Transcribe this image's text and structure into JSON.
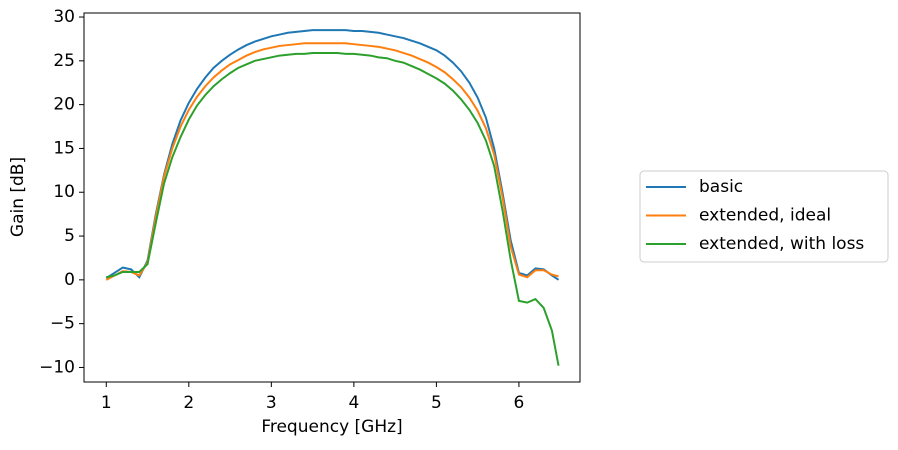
{
  "chart_data": {
    "type": "line",
    "xlabel": "Frequency [GHz]",
    "ylabel": "Gain [dB]",
    "x": [
      1.0,
      1.1,
      1.2,
      1.3,
      1.4,
      1.5,
      1.6,
      1.7,
      1.8,
      1.9,
      2.0,
      2.1,
      2.2,
      2.3,
      2.4,
      2.5,
      2.6,
      2.7,
      2.8,
      2.9,
      3.0,
      3.1,
      3.2,
      3.3,
      3.4,
      3.5,
      3.6,
      3.7,
      3.8,
      3.9,
      4.0,
      4.1,
      4.2,
      4.3,
      4.4,
      4.5,
      4.6,
      4.7,
      4.8,
      4.9,
      5.0,
      5.1,
      5.2,
      5.3,
      5.4,
      5.5,
      5.6,
      5.7,
      5.8,
      5.9,
      6.0,
      6.1,
      6.2,
      6.3,
      6.4,
      6.48
    ],
    "series": [
      {
        "name": "basic",
        "color": "#1f77b4",
        "values": [
          0.2,
          0.8,
          1.4,
          1.2,
          0.3,
          2.2,
          7.5,
          12.0,
          15.5,
          18.2,
          20.2,
          21.8,
          23.1,
          24.2,
          25.0,
          25.7,
          26.3,
          26.8,
          27.2,
          27.5,
          27.8,
          28.0,
          28.2,
          28.3,
          28.4,
          28.5,
          28.5,
          28.5,
          28.5,
          28.5,
          28.4,
          28.4,
          28.3,
          28.2,
          28.0,
          27.8,
          27.6,
          27.3,
          27.0,
          26.6,
          26.2,
          25.6,
          24.8,
          23.8,
          22.5,
          20.8,
          18.5,
          15.0,
          10.0,
          4.5,
          0.8,
          0.5,
          1.3,
          1.2,
          0.5,
          0.0
        ]
      },
      {
        "name": "extended, ideal",
        "color": "#ff7f0e",
        "values": [
          0.0,
          0.5,
          1.0,
          0.9,
          0.5,
          2.0,
          7.2,
          11.8,
          15.0,
          17.5,
          19.4,
          20.9,
          22.1,
          23.1,
          23.9,
          24.6,
          25.1,
          25.6,
          26.0,
          26.3,
          26.5,
          26.7,
          26.8,
          26.9,
          27.0,
          27.0,
          27.0,
          27.0,
          27.0,
          27.0,
          26.9,
          26.8,
          26.7,
          26.6,
          26.4,
          26.2,
          25.9,
          25.6,
          25.2,
          24.8,
          24.3,
          23.7,
          22.9,
          22.0,
          20.8,
          19.3,
          17.3,
          14.3,
          9.5,
          3.8,
          0.6,
          0.3,
          1.1,
          1.1,
          0.6,
          0.4
        ]
      },
      {
        "name": "extended, with loss",
        "color": "#2ca02c",
        "values": [
          0.3,
          0.5,
          0.9,
          0.9,
          0.9,
          1.8,
          6.5,
          11.0,
          14.0,
          16.3,
          18.3,
          19.9,
          21.1,
          22.1,
          22.9,
          23.6,
          24.2,
          24.6,
          25.0,
          25.2,
          25.4,
          25.6,
          25.7,
          25.8,
          25.8,
          25.9,
          25.9,
          25.9,
          25.9,
          25.8,
          25.8,
          25.7,
          25.6,
          25.4,
          25.3,
          25.0,
          24.8,
          24.4,
          24.0,
          23.5,
          23.0,
          22.4,
          21.6,
          20.6,
          19.4,
          17.9,
          15.9,
          13.0,
          8.0,
          2.3,
          -2.4,
          -2.6,
          -2.2,
          -3.2,
          -5.8,
          -9.8
        ]
      }
    ],
    "xlim": [
      0.73,
      6.74
    ],
    "xticks": [
      1,
      2,
      3,
      4,
      5,
      6
    ],
    "ylim": [
      -11.66,
      30.46
    ],
    "yticks": [
      {
        "value": -10,
        "label": "−10"
      },
      {
        "value": -5,
        "label": "−5"
      },
      0,
      5,
      10,
      15,
      20,
      25,
      30
    ],
    "grid": false,
    "legend": "outside right"
  }
}
